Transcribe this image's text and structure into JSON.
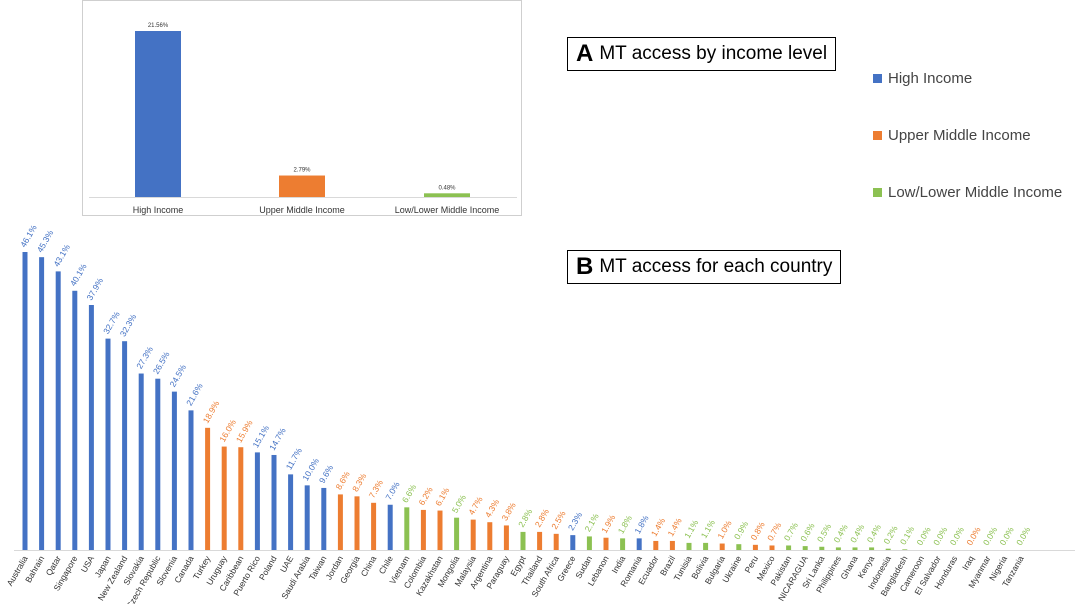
{
  "legend": {
    "items": [
      {
        "label": "High Income",
        "color": "#4472C4"
      },
      {
        "label": "Upper Middle Income",
        "color": "#ED7D31"
      },
      {
        "label": "Low/Lower Middle Income",
        "color": "#8CC152"
      }
    ]
  },
  "panel_a_title": {
    "letter": "A",
    "text": "MT access by income level"
  },
  "panel_b_title": {
    "letter": "B",
    "text": "MT access for each country"
  },
  "chart_data": [
    {
      "type": "bar",
      "categories": [
        "High Income",
        "Upper Middle Income",
        "Low/Lower Middle Income"
      ],
      "values": [
        21.56,
        2.79,
        0.48
      ],
      "data_labels": [
        "21.56%",
        "2.79%",
        "0.48%"
      ],
      "colors": [
        "#4472C4",
        "#ED7D31",
        "#8CC152"
      ],
      "ylim": [
        0,
        23
      ],
      "grid": false
    },
    {
      "type": "bar",
      "categories": [
        "Australia",
        "Bahrain",
        "Qatar",
        "Singapore",
        "USA",
        "Japan",
        "New Zealand",
        "Slovakia",
        "Czech Republic",
        "Slovenia",
        "Canada",
        "Turkey",
        "Uruguay",
        "Caribbean",
        "Puerto Rico",
        "Poland",
        "UAE",
        "Saudi Arabia",
        "Taiwan",
        "Jordan",
        "Georgia",
        "China",
        "Chile",
        "Vietnam",
        "Colombia",
        "Kazakhstan",
        "Mongolia",
        "Malaysia",
        "Argentina",
        "Paraguay",
        "Egypt",
        "Thailand",
        "South Africa",
        "Greece",
        "Sudan",
        "Lebanon",
        "India",
        "Romania",
        "Ecuador",
        "Brazil",
        "Tunisia",
        "Bolivia",
        "Bulgaria",
        "Ukraine",
        "Peru",
        "Mexico",
        "Pakistan",
        "NICARAGUA",
        "Sri Lanka",
        "Philippines",
        "Ghana",
        "Kenya",
        "Indonesia",
        "Bangladesh",
        "Cameroon",
        "El Salvador",
        "Honduras",
        "Iraq",
        "Myanmar",
        "Nigeria",
        "Tanzania"
      ],
      "values": [
        46.1,
        45.3,
        43.1,
        40.1,
        37.9,
        32.7,
        32.3,
        27.3,
        26.5,
        24.5,
        21.6,
        18.9,
        16.0,
        15.9,
        15.1,
        14.7,
        11.7,
        10.0,
        9.6,
        8.6,
        8.3,
        7.3,
        7.0,
        6.6,
        6.2,
        6.1,
        5.0,
        4.7,
        4.3,
        3.8,
        2.8,
        2.8,
        2.5,
        2.3,
        2.1,
        1.9,
        1.8,
        1.8,
        1.4,
        1.4,
        1.1,
        1.1,
        1.0,
        0.9,
        0.8,
        0.7,
        0.7,
        0.6,
        0.5,
        0.4,
        0.4,
        0.4,
        0.2,
        0.1,
        0.0,
        0.0,
        0.0,
        0.0,
        0.0,
        0.0,
        0.0
      ],
      "data_labels": [
        "46.1%",
        "45.3%",
        "43.1%",
        "40.1%",
        "37.9%",
        "32.7%",
        "32.3%",
        "27.3%",
        "26.5%",
        "24.5%",
        "21.6%",
        "18.9%",
        "16.0%",
        "15.9%",
        "15.1%",
        "14.7%",
        "11.7%",
        "10.0%",
        "9.6%",
        "8.6%",
        "8.3%",
        "7.3%",
        "7.0%",
        "6.6%",
        "6.2%",
        "6.1%",
        "5.0%",
        "4.7%",
        "4.3%",
        "3.8%",
        "2.8%",
        "2.8%",
        "2.5%",
        "2.3%",
        "2.1%",
        "1.9%",
        "1.8%",
        "1.8%",
        "1.4%",
        "1.4%",
        "1.1%",
        "1.1%",
        "1.0%",
        "0.9%",
        "0.8%",
        "0.7%",
        "0.7%",
        "0.6%",
        "0.5%",
        "0.4%",
        "0.4%",
        "0.4%",
        "0.2%",
        "0.1%",
        "0.0%",
        "0.0%",
        "0.0%",
        "0.0%",
        "0.0%",
        "0.0%",
        "0.0%"
      ],
      "groups": [
        "High",
        "High",
        "High",
        "High",
        "High",
        "High",
        "High",
        "High",
        "High",
        "High",
        "High",
        "Upper",
        "Upper",
        "Upper",
        "High",
        "High",
        "High",
        "High",
        "High",
        "Upper",
        "Upper",
        "Upper",
        "High",
        "Low",
        "Upper",
        "Upper",
        "Low",
        "Upper",
        "Upper",
        "Upper",
        "Low",
        "Upper",
        "Upper",
        "High",
        "Low",
        "Upper",
        "Low",
        "High",
        "Upper",
        "Upper",
        "Low",
        "Low",
        "Upper",
        "Low",
        "Upper",
        "Upper",
        "Low",
        "Low",
        "Low",
        "Low",
        "Low",
        "Low",
        "Low",
        "Low",
        "Low",
        "Low",
        "Low",
        "Upper",
        "Low",
        "Low",
        "Low"
      ],
      "group_colors": {
        "High": "#4472C4",
        "Upper": "#ED7D31",
        "Low": "#8CC152"
      },
      "ylim": [
        0,
        48
      ],
      "grid": false
    }
  ]
}
